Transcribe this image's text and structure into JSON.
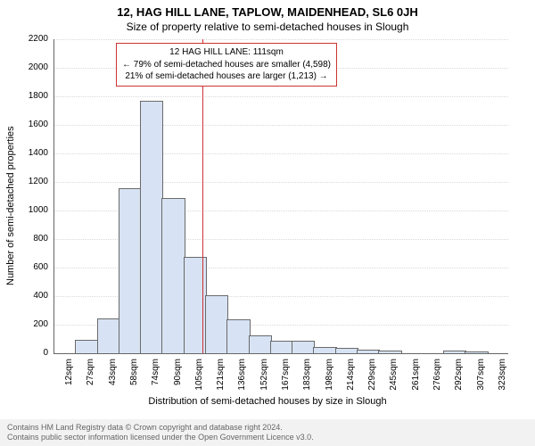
{
  "title_main": "12, HAG HILL LANE, TAPLOW, MAIDENHEAD, SL6 0JH",
  "title_sub": "Size of property relative to semi-detached houses in Slough",
  "y_axis": {
    "label": "Number of semi-detached properties",
    "min": 0,
    "max": 2200,
    "tick_step": 200,
    "ticks": [
      0,
      200,
      400,
      600,
      800,
      1000,
      1200,
      1400,
      1600,
      1800,
      2000,
      2200
    ],
    "tick_fontsize": 10,
    "label_fontsize": 11
  },
  "x_axis": {
    "label": "Distribution of semi-detached houses by size in Slough",
    "ticks": [
      "12sqm",
      "27sqm",
      "43sqm",
      "58sqm",
      "74sqm",
      "90sqm",
      "105sqm",
      "121sqm",
      "136sqm",
      "152sqm",
      "167sqm",
      "183sqm",
      "198sqm",
      "214sqm",
      "229sqm",
      "245sqm",
      "261sqm",
      "276sqm",
      "292sqm",
      "307sqm",
      "323sqm"
    ],
    "tick_fontsize": 10,
    "label_fontsize": 11
  },
  "histogram": {
    "type": "histogram",
    "values": [
      0,
      90,
      240,
      1150,
      1760,
      1080,
      670,
      400,
      230,
      120,
      80,
      80,
      40,
      30,
      20,
      15,
      0,
      0,
      10,
      5,
      0
    ],
    "bar_fill": "#d7e3f4",
    "bar_stroke": "#6a6a6a",
    "bar_width_ratio": 1.0
  },
  "reference_line": {
    "value_sqm": 111,
    "color": "#cc3333",
    "width": 1
  },
  "annotation": {
    "line1": "12 HAG HILL LANE: 111sqm",
    "line2": "← 79% of semi-detached houses are smaller (4,598)",
    "line3": "21% of semi-detached houses are larger (1,213) →",
    "border_color": "#cc3333",
    "background": "#ffffff",
    "fontsize": 10
  },
  "grid": {
    "color": "#d9d9d9",
    "style": "dotted",
    "width": 1
  },
  "chart_background": "#ffffff",
  "axis_color": "#666666",
  "footer": {
    "line1": "Contains HM Land Registry data © Crown copyright and database right 2024.",
    "line2": "Contains public sector information licensed under the Open Government Licence v3.0.",
    "background": "#f2f2f2",
    "color": "#666666",
    "fontsize": 9
  }
}
